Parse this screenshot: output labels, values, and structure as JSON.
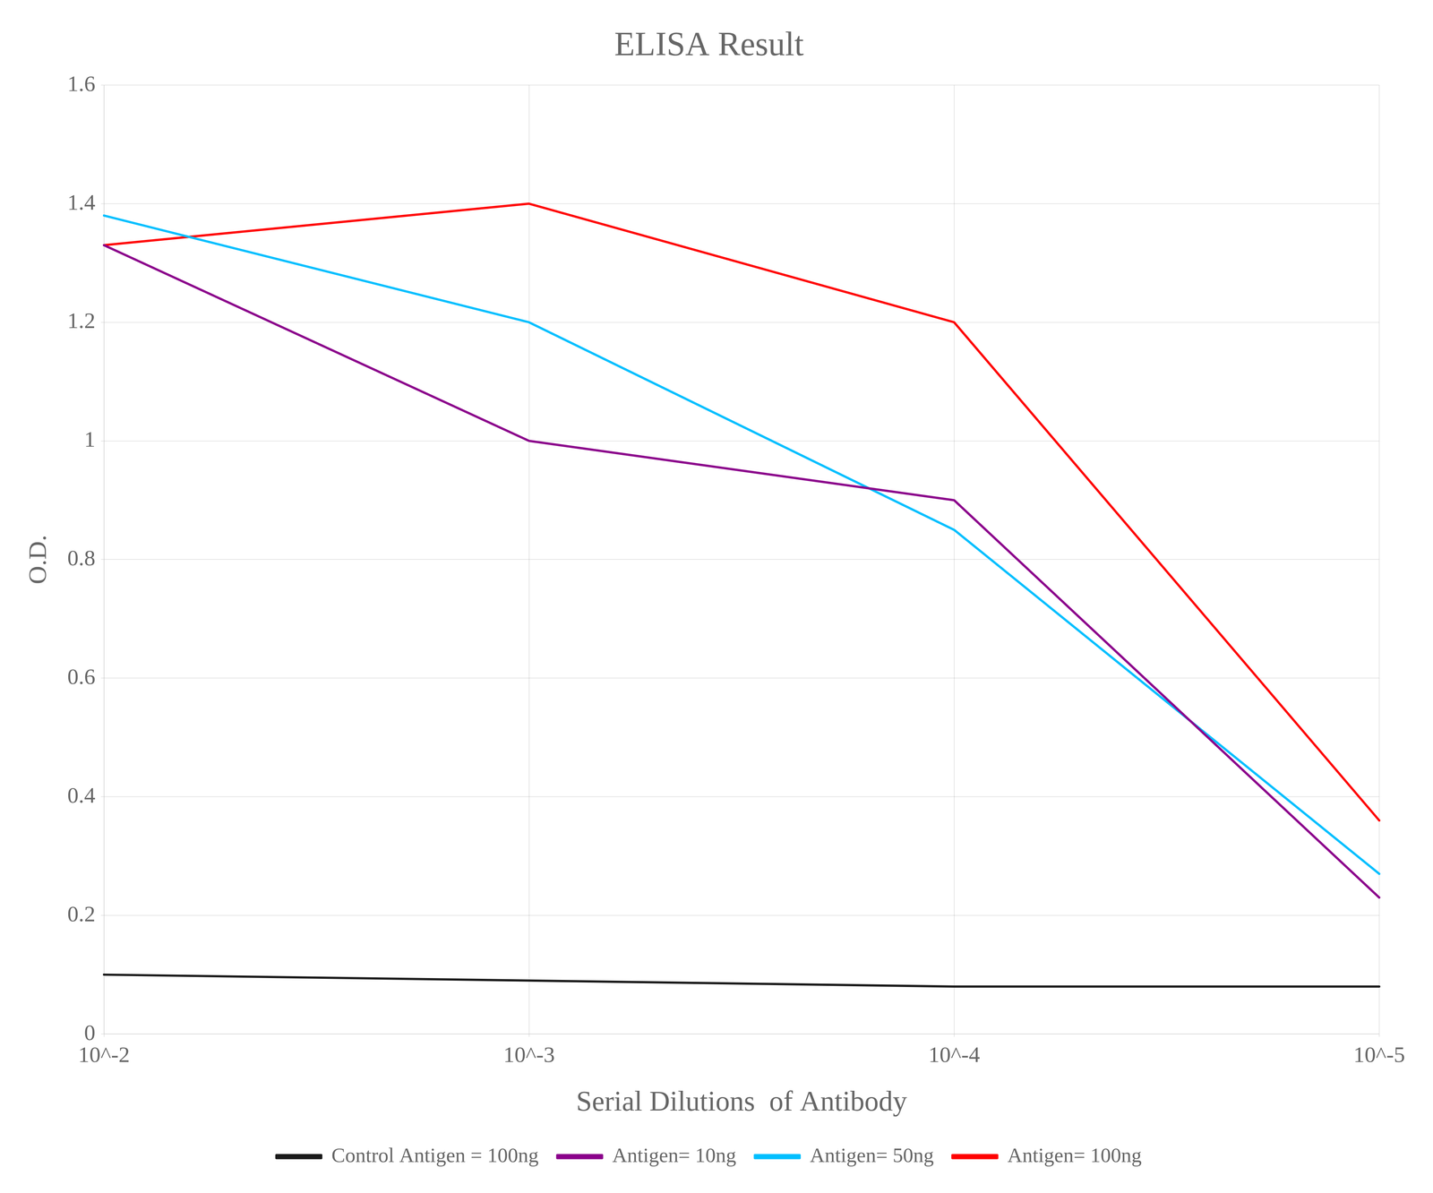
{
  "chart_data": {
    "type": "line",
    "title": "ELISA Result",
    "xlabel": "Serial Dilutions  of Antibody",
    "ylabel": "O.D.",
    "categories": [
      "10^-2",
      "10^-3",
      "10^-4",
      "10^-5"
    ],
    "series": [
      {
        "name": "Control Antigen = 100ng",
        "color": "#1a1a1a",
        "values": [
          0.1,
          0.09,
          0.08,
          0.08
        ]
      },
      {
        "name": "Antigen= 10ng",
        "color": "#8B008B",
        "values": [
          1.33,
          1.0,
          0.9,
          0.23
        ]
      },
      {
        "name": "Antigen= 50ng",
        "color": "#00BFFF",
        "values": [
          1.38,
          1.2,
          0.85,
          0.27
        ]
      },
      {
        "name": "Antigen= 100ng",
        "color": "#FF0000",
        "values": [
          1.33,
          1.4,
          1.2,
          0.36
        ]
      }
    ],
    "ylim": [
      0,
      1.6
    ],
    "yticks": [
      0,
      0.2,
      0.4,
      0.6,
      0.8,
      1.0,
      1.2,
      1.4,
      1.6
    ],
    "grid": true,
    "legend": "bottom"
  }
}
